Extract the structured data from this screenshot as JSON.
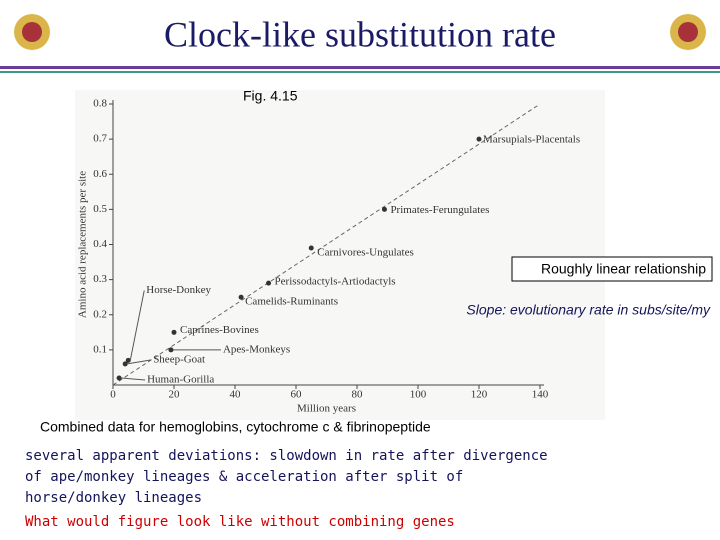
{
  "slide": {
    "title": "Clock-like substitution rate",
    "figure_label": "Fig. 4.15",
    "box_note": "Roughly linear relationship",
    "slope_note": "Slope: evolutionary rate in subs/site/my",
    "caption": "Combined data for hemoglobins, cytochrome c & fibrinopeptide",
    "notes": [
      "several apparent deviations: slowdown in rate after divergence",
      "of ape/monkey lineages & acceleration after split of",
      "horse/donkey lineages"
    ],
    "question": "What would figure look like without combining genes"
  },
  "chart_data": {
    "type": "scatter",
    "x_label": "Million years",
    "y_label": "Amino acid replacements per site",
    "labels": [
      "Human-Gorilla",
      "Sheep-Goat",
      "Horse-Donkey",
      "Apes-Monkeys",
      "Caprines-Bovines",
      "Camelids-Ruminants",
      "Perissodactyls-Artiodactyls",
      "Carnivores-Ungulates",
      "Primates-Ferungulates",
      "Marsupials-Placentals"
    ],
    "x": [
      2,
      4,
      5,
      19,
      20,
      42,
      51,
      65,
      89,
      120
    ],
    "values": [
      0.02,
      0.06,
      0.07,
      0.1,
      0.15,
      0.25,
      0.29,
      0.39,
      0.5,
      0.7
    ],
    "trend_line": {
      "x": [
        0,
        140
      ],
      "y": [
        0,
        0.8
      ]
    },
    "color": "#333333",
    "xlim": [
      0,
      140
    ],
    "ylim": [
      0,
      0.8
    ],
    "xticks": [
      0,
      20,
      40,
      60,
      80,
      100,
      120,
      140
    ],
    "yticks": [
      0.1,
      0.2,
      0.3,
      0.4,
      0.5,
      0.6,
      0.7,
      0.8
    ]
  }
}
